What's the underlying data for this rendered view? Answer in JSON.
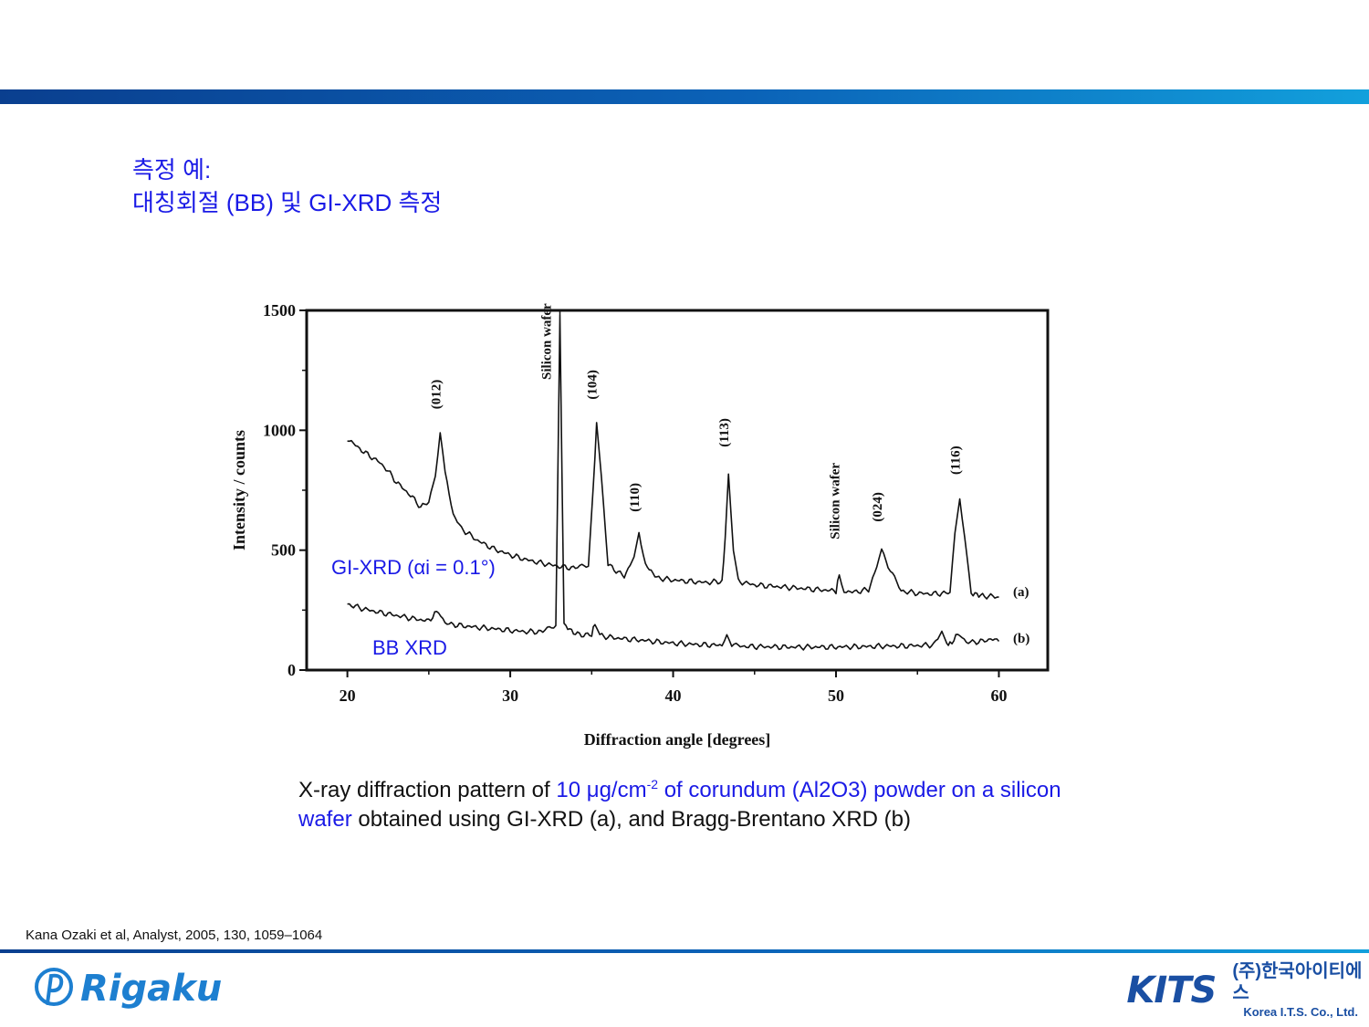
{
  "title": {
    "line1": "측정 예:",
    "line2": "대칭회절 (BB) 및 GI-XRD 측정"
  },
  "chart_data": {
    "type": "line",
    "xlabel": "Diffraction angle [degrees]",
    "ylabel": "Intensity / counts",
    "xlim": [
      17.5,
      63
    ],
    "ylim": [
      0,
      1500
    ],
    "x_ticks": [
      20,
      30,
      40,
      50,
      60
    ],
    "y_ticks": [
      0,
      500,
      1000,
      1500
    ],
    "series": [
      {
        "name": "(a)",
        "annotation": "GI-XRD (αi = 0.1°)",
        "points": [
          [
            20,
            965
          ],
          [
            21,
            910
          ],
          [
            22,
            865
          ],
          [
            22.5,
            830
          ],
          [
            23,
            785
          ],
          [
            24,
            720
          ],
          [
            24.5,
            680
          ],
          [
            25,
            700
          ],
          [
            25.4,
            820
          ],
          [
            25.7,
            990
          ],
          [
            26,
            820
          ],
          [
            26.5,
            650
          ],
          [
            27,
            590
          ],
          [
            28,
            540
          ],
          [
            29,
            505
          ],
          [
            30,
            480
          ],
          [
            31,
            460
          ],
          [
            32,
            445
          ],
          [
            33,
            432
          ],
          [
            34,
            425
          ],
          [
            34.8,
            440
          ],
          [
            35.1,
            760
          ],
          [
            35.3,
            1030
          ],
          [
            35.6,
            800
          ],
          [
            36,
            440
          ],
          [
            37,
            390
          ],
          [
            37.6,
            470
          ],
          [
            37.9,
            570
          ],
          [
            38.3,
            440
          ],
          [
            39,
            385
          ],
          [
            40,
            375
          ],
          [
            41,
            370
          ],
          [
            42,
            365
          ],
          [
            43,
            370
          ],
          [
            43.2,
            550
          ],
          [
            43.4,
            820
          ],
          [
            43.7,
            500
          ],
          [
            44,
            370
          ],
          [
            45,
            355
          ],
          [
            46,
            350
          ],
          [
            47,
            345
          ],
          [
            48,
            340
          ],
          [
            49,
            335
          ],
          [
            50,
            330
          ],
          [
            50.2,
            400
          ],
          [
            50.5,
            330
          ],
          [
            51,
            325
          ],
          [
            52,
            335
          ],
          [
            52.5,
            430
          ],
          [
            52.8,
            505
          ],
          [
            53.2,
            430
          ],
          [
            54,
            330
          ],
          [
            55,
            320
          ],
          [
            56,
            318
          ],
          [
            57,
            322
          ],
          [
            57.3,
            560
          ],
          [
            57.6,
            720
          ],
          [
            57.9,
            560
          ],
          [
            58.3,
            320
          ],
          [
            59,
            310
          ],
          [
            60,
            305
          ]
        ]
      },
      {
        "name": "(b)",
        "annotation": "BB XRD",
        "points": [
          [
            20,
            275
          ],
          [
            21,
            255
          ],
          [
            22,
            240
          ],
          [
            23,
            228
          ],
          [
            24,
            215
          ],
          [
            25,
            205
          ],
          [
            25.6,
            250
          ],
          [
            26,
            195
          ],
          [
            27,
            185
          ],
          [
            28,
            178
          ],
          [
            29,
            172
          ],
          [
            30,
            165
          ],
          [
            31,
            160
          ],
          [
            32,
            160
          ],
          [
            32.8,
            190
          ],
          [
            33.05,
            1480
          ],
          [
            33.3,
            190
          ],
          [
            34,
            150
          ],
          [
            35,
            145
          ],
          [
            35.2,
            200
          ],
          [
            35.5,
            145
          ],
          [
            36,
            138
          ],
          [
            37,
            130
          ],
          [
            38,
            125
          ],
          [
            39,
            118
          ],
          [
            40,
            112
          ],
          [
            41,
            108
          ],
          [
            42,
            105
          ],
          [
            43,
            103
          ],
          [
            43.3,
            150
          ],
          [
            43.6,
            103
          ],
          [
            44,
            100
          ],
          [
            45,
            98
          ],
          [
            46,
            97
          ],
          [
            47,
            96
          ],
          [
            48,
            96
          ],
          [
            49,
            96
          ],
          [
            50,
            96
          ],
          [
            51,
            97
          ],
          [
            52,
            98
          ],
          [
            53,
            100
          ],
          [
            54,
            100
          ],
          [
            55,
            102
          ],
          [
            56,
            105
          ],
          [
            56.5,
            160
          ],
          [
            56.8,
            108
          ],
          [
            57,
            110
          ],
          [
            57.6,
            155
          ],
          [
            58,
            115
          ],
          [
            59,
            120
          ],
          [
            59.5,
            130
          ],
          [
            60,
            120
          ]
        ]
      }
    ],
    "peak_labels": [
      {
        "text": "(012)",
        "x": 25.7,
        "y": 1150
      },
      {
        "text": "Silicon wafer",
        "x": 32.5,
        "y": 1370
      },
      {
        "text": "(104)",
        "x": 35.3,
        "y": 1190
      },
      {
        "text": "(110)",
        "x": 37.9,
        "y": 720
      },
      {
        "text": "(113)",
        "x": 43.4,
        "y": 990
      },
      {
        "text": "Silicon wafer",
        "x": 50.2,
        "y": 705
      },
      {
        "text": "(024)",
        "x": 52.8,
        "y": 680
      },
      {
        "text": "(116)",
        "x": 57.6,
        "y": 875
      }
    ]
  },
  "labels": {
    "gi_xrd": "GI-XRD (αi = 0.1°)",
    "bb_xrd": "BB XRD",
    "series_a": "(a)",
    "series_b": "(b)"
  },
  "caption": {
    "p1": "X-ray diffraction pattern of ",
    "p2": "10 μg/cm",
    "p2sup": "-2",
    "p3": " of corundum (Al2O3) powder on a silicon wafer",
    "p4": " obtained using GI-XRD (a), and Bragg-Brentano XRD (b)"
  },
  "citation": "Kana Ozaki et al, Analyst, 2005, 130, 1059–1064",
  "logos": {
    "rigaku": "Rigaku",
    "kits": "KITS",
    "kits_ko": "(주)한국아이티에스",
    "kits_en": "Korea I.T.S. Co., Ltd."
  },
  "colors": {
    "title": "#1a1ae6",
    "bar_start": "#0a3f8f",
    "bar_end": "#12a0dc",
    "trace": "#111111"
  }
}
